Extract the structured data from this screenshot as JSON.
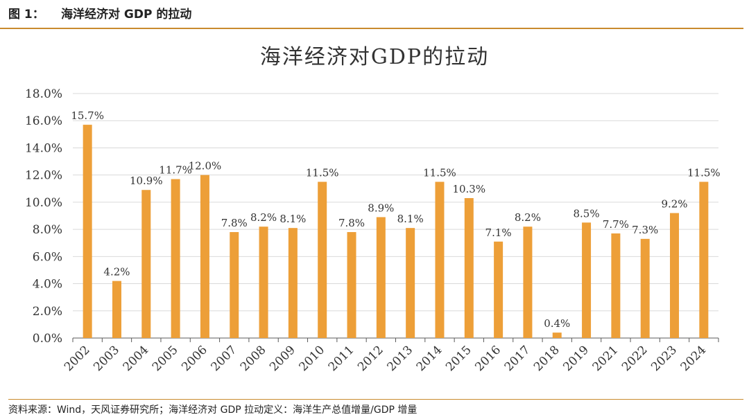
{
  "header": {
    "figure_no": "图 1：",
    "figure_title": "海洋经济对 GDP 的拉动"
  },
  "footer": {
    "source": "资料来源：Wind，天风证券研究所；海洋经济对 GDP 拉动定义：海洋生产总值增量/GDP 增量"
  },
  "colors": {
    "bar": "#ED9F38",
    "grid": "#d9d9d9",
    "axis": "#595959"
  },
  "chart_data": {
    "type": "bar",
    "title": "海洋经济对GDP的拉动",
    "xlabel": "",
    "ylabel": "",
    "categories": [
      "2002",
      "2003",
      "2004",
      "2005",
      "2006",
      "2007",
      "2008",
      "2009",
      "2010",
      "2011",
      "2012",
      "2013",
      "2014",
      "2015",
      "2016",
      "2017",
      "2018",
      "2019",
      "2021",
      "2022",
      "2023",
      "2024"
    ],
    "values": [
      15.7,
      4.2,
      10.9,
      11.7,
      12.0,
      7.8,
      8.2,
      8.1,
      11.5,
      7.8,
      8.9,
      8.1,
      11.5,
      10.3,
      7.1,
      8.2,
      0.4,
      8.5,
      7.7,
      7.3,
      9.2,
      11.5
    ],
    "data_labels": [
      "15.7%",
      "4.2%",
      "10.9%",
      "11.7%",
      "12.0%",
      "7.8%",
      "8.2%",
      "8.1%",
      "11.5%",
      "7.8%",
      "8.9%",
      "8.1%",
      "11.5%",
      "10.3%",
      "7.1%",
      "8.2%",
      "0.4%",
      "8.5%",
      "7.7%",
      "7.3%",
      "9.2%",
      "11.5%"
    ],
    "ylim": [
      0,
      18
    ],
    "yticks": [
      "0.0%",
      "2.0%",
      "4.0%",
      "6.0%",
      "8.0%",
      "10.0%",
      "12.0%",
      "14.0%",
      "16.0%",
      "18.0%"
    ],
    "grid": true,
    "legend": "none"
  }
}
